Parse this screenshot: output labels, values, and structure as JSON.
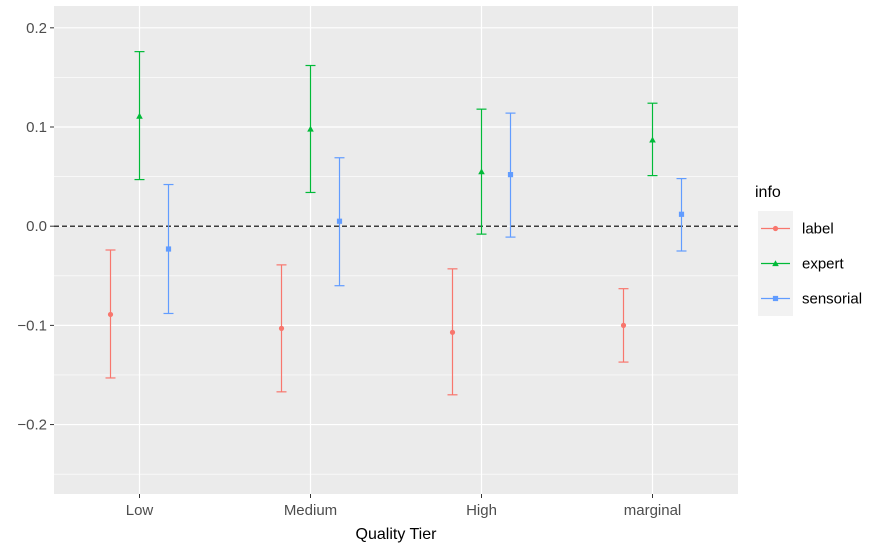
{
  "chart_data": {
    "type": "errorbar",
    "xlabel": "Quality Tier",
    "ylabel": "",
    "categories": [
      "Low",
      "Medium",
      "High",
      "marginal"
    ],
    "ylim": [
      -0.27,
      0.222
    ],
    "y_ticks": [
      -0.2,
      -0.1,
      0.0,
      0.1,
      0.2
    ],
    "y_tick_labels": [
      "−0.2",
      "−0.1",
      "0.0",
      "0.1",
      "0.2"
    ],
    "reference_line": 0.0,
    "grid": true,
    "legend": {
      "title": "info",
      "position": "right"
    },
    "series": [
      {
        "name": "label",
        "color": "#F8766D",
        "marker": "circle",
        "estimate": [
          -0.089,
          -0.103,
          -0.107,
          -0.1
        ],
        "lower": [
          -0.153,
          -0.167,
          -0.17,
          -0.137
        ],
        "upper": [
          -0.024,
          -0.039,
          -0.043,
          -0.063
        ]
      },
      {
        "name": "expert",
        "color": "#00BA38",
        "marker": "triangle",
        "estimate": [
          0.111,
          0.098,
          0.055,
          0.087
        ],
        "lower": [
          0.047,
          0.034,
          -0.008,
          0.051
        ],
        "upper": [
          0.176,
          0.162,
          0.118,
          0.124
        ]
      },
      {
        "name": "sensorial",
        "color": "#619CFF",
        "marker": "square",
        "estimate": [
          -0.023,
          0.005,
          0.052,
          0.012
        ],
        "lower": [
          -0.088,
          -0.06,
          -0.011,
          -0.025
        ],
        "upper": [
          0.042,
          0.069,
          0.114,
          0.048
        ]
      }
    ]
  }
}
